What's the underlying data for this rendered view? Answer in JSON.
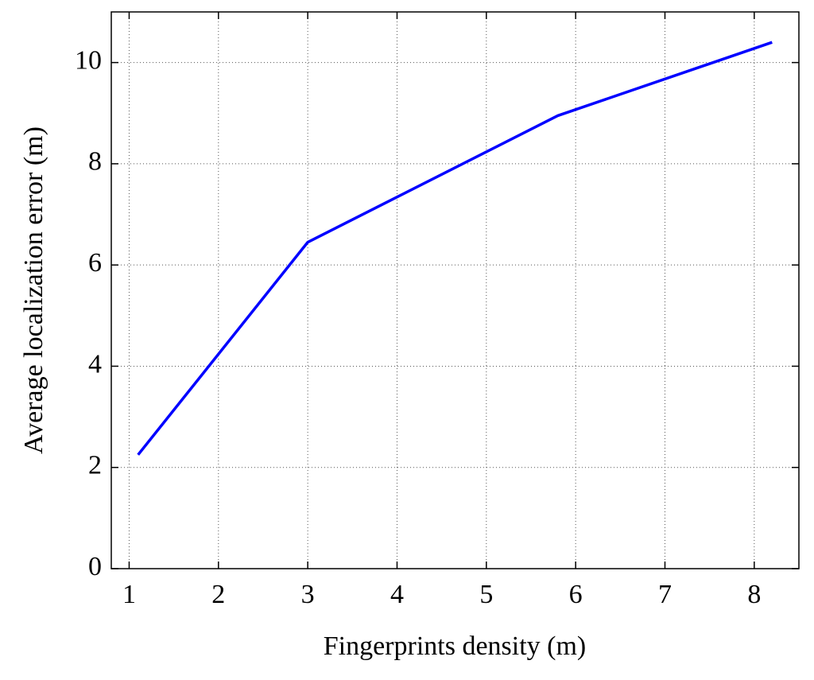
{
  "chart_data": {
    "type": "line",
    "x_label": "Fingerprints density (m)",
    "y_label": "Average localization error (m)",
    "x": [
      1.1,
      3,
      5.8,
      8.2
    ],
    "values": [
      2.25,
      6.45,
      8.95,
      10.4
    ],
    "color": "#0000ff",
    "xlim": [
      0.8,
      8.5
    ],
    "xticks": [
      1,
      2,
      3,
      4,
      5,
      6,
      7,
      8
    ],
    "ylim": [
      0,
      11
    ],
    "yticks": [
      0,
      2,
      4,
      6,
      8,
      10
    ],
    "grid": true
  }
}
